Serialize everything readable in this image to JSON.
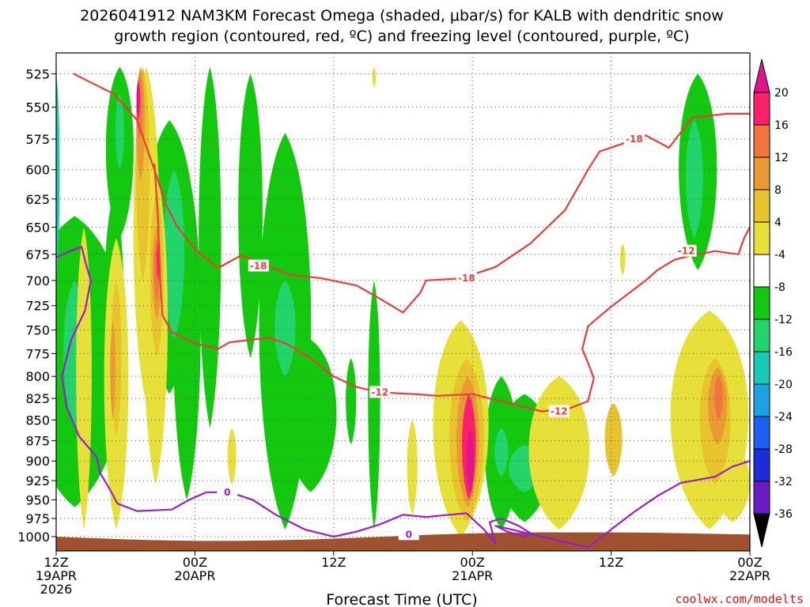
{
  "title": {
    "line1": "2026041912 NAM3KM Forecast Omega (shaded, μbar/s) for KALB with dendritic snow",
    "line2": "growth region (contoured, red, ºC) and freezing level (contoured, purple, ºC)"
  },
  "credit": "coolwx.com/modelts",
  "chart_data": {
    "type": "time-height contour",
    "title": "2026041912 NAM3KM Forecast Omega (shaded, μbar/s) for KALB with dendritic snow growth region (contoured, red, ºC) and freezing level (contoured, purple, ºC)",
    "xlabel": "Forecast Time (UTC)",
    "ylabel": "",
    "x_range_hours": [
      0,
      60
    ],
    "y_levels_hpa": [
      525,
      550,
      575,
      600,
      625,
      650,
      675,
      700,
      725,
      750,
      775,
      800,
      825,
      850,
      875,
      900,
      925,
      950,
      975,
      1000
    ],
    "y_range_hpa": [
      510,
      1020
    ],
    "y_scale": "log",
    "grid": true,
    "x_ticks": [
      {
        "hour": 0,
        "label1": "12Z",
        "label2": "19APR",
        "label3": "2026"
      },
      {
        "hour": 12,
        "label1": "00Z",
        "label2": "20APR",
        "label3": ""
      },
      {
        "hour": 24,
        "label1": "12Z",
        "label2": "",
        "label3": ""
      },
      {
        "hour": 36,
        "label1": "00Z",
        "label2": "21APR",
        "label3": ""
      },
      {
        "hour": 48,
        "label1": "12Z",
        "label2": "",
        "label3": ""
      },
      {
        "hour": 60,
        "label1": "00Z",
        "label2": "22APR",
        "label3": ""
      }
    ],
    "colorbar": {
      "labels": [
        "20",
        "16",
        "12",
        "8",
        "4",
        "-4",
        "-8",
        "-12",
        "-16",
        "-20",
        "-24",
        "-28",
        "-32",
        "-36"
      ],
      "colors": [
        "#ff1f6a",
        "#f2743f",
        "#e89a33",
        "#e9c32d",
        "#e7e03a",
        "#ffffff",
        "#14c80f",
        "#22d46a",
        "#18c9b4",
        "#1e9fe6",
        "#1d5ff0",
        "#1d2cd6",
        "#6a1ac6",
        "#9a1ac6",
        "#b0b0b0"
      ]
    },
    "dgz_contours": [
      {
        "label": "-18",
        "points": [
          [
            1.5,
            525
          ],
          [
            5,
            540
          ],
          [
            7,
            560
          ],
          [
            8.5,
            600
          ],
          [
            9.5,
            630
          ],
          [
            10.5,
            650
          ],
          [
            12,
            670
          ],
          [
            14,
            688
          ],
          [
            16,
            676
          ],
          [
            18,
            684
          ],
          [
            20,
            694
          ],
          [
            23,
            698
          ],
          [
            26,
            705
          ],
          [
            28,
            718
          ],
          [
            30,
            732
          ],
          [
            31.5,
            712
          ],
          [
            32,
            700
          ],
          [
            35,
            698
          ],
          [
            38,
            687
          ],
          [
            41,
            665
          ],
          [
            44,
            635
          ],
          [
            46,
            600
          ],
          [
            47,
            585
          ],
          [
            49.5,
            577
          ],
          [
            51,
            572
          ],
          [
            53,
            582
          ],
          [
            55,
            558
          ],
          [
            58,
            555
          ],
          [
            60,
            555
          ]
        ]
      },
      {
        "label": "-12",
        "points": [
          [
            8.5,
            595
          ],
          [
            8.8,
            640
          ],
          [
            9,
            700
          ],
          [
            9.2,
            735
          ],
          [
            10,
            752
          ],
          [
            12,
            764
          ],
          [
            14,
            770
          ],
          [
            15,
            763
          ],
          [
            17,
            760
          ],
          [
            18.5,
            758
          ],
          [
            20,
            765
          ],
          [
            22,
            780
          ],
          [
            24,
            800
          ],
          [
            26,
            812
          ],
          [
            28,
            818
          ],
          [
            31,
            820
          ],
          [
            33,
            822
          ],
          [
            36,
            820
          ],
          [
            39,
            830
          ],
          [
            42,
            840
          ],
          [
            44.5,
            836
          ],
          [
            46,
            828
          ],
          [
            46.5,
            802
          ],
          [
            46,
            785
          ],
          [
            45.5,
            770
          ],
          [
            46,
            746
          ],
          [
            48,
            726
          ],
          [
            51,
            700
          ],
          [
            52,
            690
          ],
          [
            53.5,
            680
          ],
          [
            55,
            676
          ],
          [
            57,
            672
          ],
          [
            59,
            675
          ],
          [
            59.5,
            660
          ],
          [
            60,
            650
          ]
        ]
      },
      {
        "label": "-12",
        "points": [
          [
            0,
            670
          ]
        ]
      }
    ],
    "freezing_level": {
      "label": "0",
      "points": [
        [
          0,
          678
        ],
        [
          1.2,
          672
        ],
        [
          2.2,
          668
        ],
        [
          2.6,
          685
        ],
        [
          3,
          700
        ],
        [
          2.5,
          730
        ],
        [
          1.3,
          760
        ],
        [
          0.5,
          800
        ],
        [
          0.9,
          835
        ],
        [
          2,
          870
        ],
        [
          3.5,
          895
        ],
        [
          3.8,
          915
        ],
        [
          4.6,
          935
        ],
        [
          5.3,
          955
        ],
        [
          7,
          965
        ],
        [
          10,
          963
        ],
        [
          11.5,
          950
        ],
        [
          13,
          940
        ],
        [
          15,
          940
        ],
        [
          17,
          950
        ],
        [
          19,
          970
        ],
        [
          21.5,
          990
        ],
        [
          24,
          1000
        ],
        [
          26,
          993
        ],
        [
          28,
          983
        ],
        [
          30,
          970
        ],
        [
          32,
          973
        ],
        [
          34,
          970
        ],
        [
          35.5,
          968
        ],
        [
          37,
          990
        ],
        [
          38,
          1010
        ],
        [
          37.5,
          980
        ],
        [
          38.5,
          975
        ],
        [
          40,
          985
        ],
        [
          41,
          995
        ],
        [
          40.5,
          1000
        ],
        [
          39,
          993
        ],
        [
          38,
          985
        ],
        [
          46,
          1015
        ],
        [
          48,
          990
        ],
        [
          50,
          966
        ],
        [
          52,
          945
        ],
        [
          54,
          928
        ],
        [
          57,
          920
        ],
        [
          58.5,
          907
        ],
        [
          60,
          900
        ]
      ]
    },
    "omega_regions": [
      {
        "value": -8,
        "center_hour": 1.5,
        "center_hpa": 700,
        "note": "negative omega (ascent) shaded green"
      },
      {
        "value": 20,
        "center_hour": 38,
        "center_hpa": 900,
        "note": "positive omega max near 21APR"
      },
      {
        "value": 12,
        "center_hour": 57,
        "center_hpa": 820,
        "note": "positive omega near 22APR"
      }
    ]
  },
  "ui": {
    "xlabel": "Forecast Time (UTC)"
  }
}
